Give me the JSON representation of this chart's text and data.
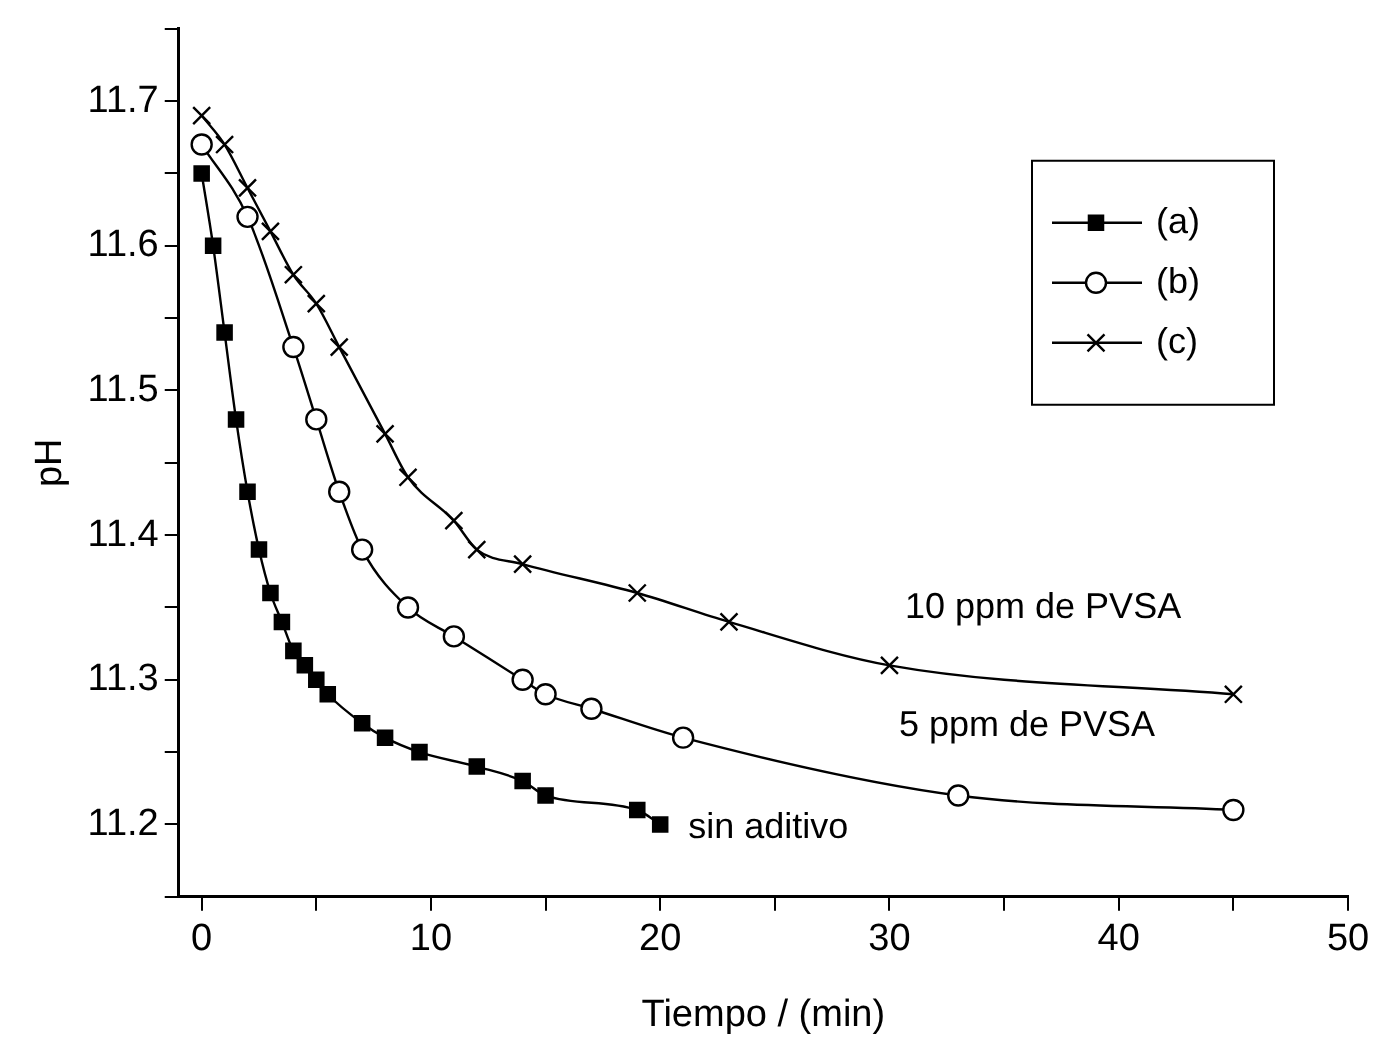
{
  "chart_data": {
    "type": "line",
    "xlabel": "Tiempo / (min)",
    "ylabel": "pH",
    "xlim": [
      -1,
      50
    ],
    "xticks": [
      0,
      {
        "value": 5,
        "label": null
      },
      10,
      {
        "value": 15,
        "label": null
      },
      20,
      {
        "value": 25,
        "label": null
      },
      30,
      {
        "value": 35,
        "label": null
      },
      40,
      {
        "value": 45,
        "label": null
      },
      50
    ],
    "ylim": [
      11.15,
      11.75
    ],
    "yticks": [
      {
        "value": 11.15,
        "label": null
      },
      11.2,
      {
        "value": 11.25,
        "label": null
      },
      11.3,
      {
        "value": 11.35,
        "label": null
      },
      11.4,
      {
        "value": 11.45,
        "label": null
      },
      11.5,
      {
        "value": 11.55,
        "label": null
      },
      11.6,
      {
        "value": 11.65,
        "label": null
      },
      11.7,
      {
        "value": 11.75,
        "label": null
      }
    ],
    "grid": false,
    "legend": "right",
    "line_style": "solid",
    "series": [
      {
        "name": "(a)",
        "color": "#000000",
        "marker": "square",
        "x": [
          0,
          0.5,
          1,
          1.5,
          2,
          2.5,
          3,
          3.5,
          4,
          4.5,
          5,
          5.5,
          7,
          8,
          9.5,
          12,
          14,
          15,
          19,
          20
        ],
        "values": [
          11.65,
          11.6,
          11.54,
          11.48,
          11.43,
          11.39,
          11.36,
          11.34,
          11.32,
          11.31,
          11.3,
          11.29,
          11.27,
          11.26,
          11.25,
          11.24,
          11.23,
          11.22,
          11.21,
          11.2
        ]
      },
      {
        "name": "(b)",
        "color": "#000000",
        "marker": "circle",
        "x": [
          0,
          2,
          4,
          5,
          6,
          7,
          9,
          11,
          14,
          15,
          17,
          21,
          33,
          45
        ],
        "values": [
          11.67,
          11.62,
          11.53,
          11.48,
          11.43,
          11.39,
          11.35,
          11.33,
          11.3,
          11.29,
          11.28,
          11.26,
          11.22,
          11.21
        ]
      },
      {
        "name": "(c)",
        "color": "#000000",
        "marker": "cross",
        "x": [
          0,
          1,
          2,
          3,
          4,
          5,
          6,
          8,
          9,
          11,
          12,
          14,
          19,
          23,
          30,
          45
        ],
        "values": [
          11.69,
          11.67,
          11.64,
          11.61,
          11.58,
          11.56,
          11.53,
          11.47,
          11.44,
          11.41,
          11.39,
          11.38,
          11.36,
          11.34,
          11.31,
          11.29
        ]
      }
    ],
    "annotations": [
      {
        "text": "10 ppm de PVSA",
        "x": 36.7,
        "y": 11.3
      },
      {
        "text": "5 ppm de PVSA",
        "x": 36,
        "y": 11.218
      },
      {
        "text": "sin aditivo",
        "x": 20,
        "y": 11.2
      }
    ]
  }
}
